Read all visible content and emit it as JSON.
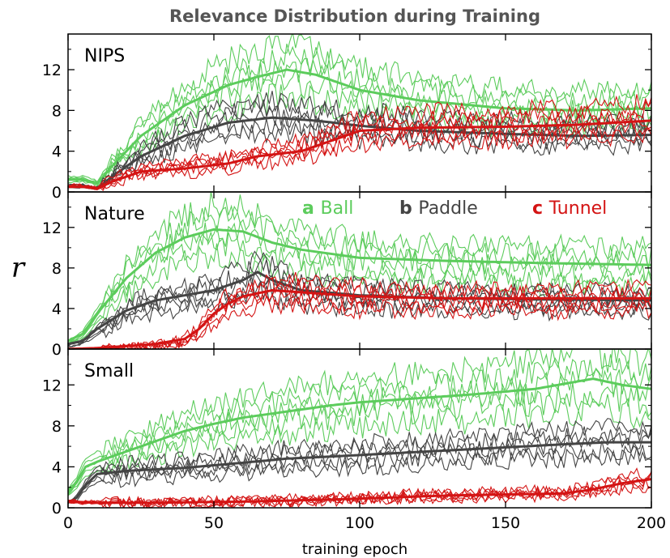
{
  "colors": {
    "ball": "#5ccc5c",
    "paddle": "#444444",
    "tunnel": "#d41414"
  },
  "chart_data": {
    "type": "line",
    "title": "Relevance Distribution during Training",
    "xlabel": "training epoch",
    "ylabel": "r",
    "xlim": [
      0,
      200
    ],
    "ylim": [
      0,
      15.5
    ],
    "xticks": [
      0,
      50,
      100,
      150,
      200
    ],
    "yticks": [
      0,
      4,
      8,
      12
    ],
    "legend": [
      {
        "letter": "a",
        "name": "Ball",
        "color": "#5ccc5c"
      },
      {
        "letter": "b",
        "name": "Paddle",
        "color": "#444444"
      },
      {
        "letter": "c",
        "name": "Tunnel",
        "color": "#d41414"
      }
    ],
    "legend_location": "top-right of Nature panel",
    "panels": [
      {
        "name": "NIPS",
        "series": [
          {
            "name": "Ball",
            "x": [
              0,
              5,
              10,
              15,
              25,
              40,
              55,
              65,
              75,
              85,
              100,
              120,
              150,
              175,
              200
            ],
            "y": [
              1.2,
              1.2,
              0.8,
              2.5,
              5.5,
              8.5,
              10.5,
              11.3,
              12.0,
              11.5,
              10.0,
              9.0,
              8.2,
              8.0,
              8.2
            ]
          },
          {
            "name": "Paddle",
            "x": [
              0,
              5,
              10,
              15,
              25,
              40,
              55,
              70,
              85,
              100,
              120,
              150,
              175,
              200
            ],
            "y": [
              0.5,
              0.5,
              0.3,
              1.5,
              3.5,
              5.5,
              6.8,
              7.3,
              7.0,
              6.5,
              6.0,
              5.7,
              5.5,
              5.6
            ]
          },
          {
            "name": "Tunnel",
            "x": [
              0,
              5,
              10,
              15,
              25,
              40,
              55,
              65,
              80,
              90,
              100,
              120,
              150,
              175,
              200
            ],
            "y": [
              0.5,
              0.5,
              0.3,
              1.0,
              2.0,
              2.3,
              2.8,
              3.5,
              4.0,
              5.0,
              6.0,
              6.3,
              6.4,
              6.6,
              7.0
            ]
          }
        ]
      },
      {
        "name": "Nature",
        "series": [
          {
            "name": "Ball",
            "x": [
              0,
              5,
              10,
              20,
              30,
              40,
              50,
              60,
              70,
              80,
              100,
              130,
              160,
              200
            ],
            "y": [
              0.8,
              1.5,
              3.5,
              7.0,
              9.5,
              11.0,
              11.8,
              11.6,
              10.5,
              9.8,
              9.0,
              8.7,
              8.5,
              8.3
            ]
          },
          {
            "name": "Paddle",
            "x": [
              0,
              5,
              10,
              20,
              30,
              40,
              50,
              60,
              65,
              70,
              80,
              100,
              130,
              160,
              200
            ],
            "y": [
              0.5,
              0.8,
              2.0,
              3.8,
              4.8,
              5.3,
              5.8,
              6.8,
              7.6,
              6.8,
              5.8,
              5.3,
              5.0,
              4.9,
              4.8
            ]
          },
          {
            "name": "Tunnel",
            "x": [
              0,
              10,
              20,
              30,
              40,
              45,
              50,
              55,
              60,
              70,
              80,
              100,
              130,
              160,
              200
            ],
            "y": [
              0.0,
              0.1,
              0.3,
              0.5,
              1.0,
              2.0,
              3.5,
              4.5,
              5.2,
              5.8,
              5.6,
              5.2,
              5.0,
              5.0,
              5.0
            ]
          }
        ]
      },
      {
        "name": "Small",
        "series": [
          {
            "name": "Ball",
            "x": [
              0,
              3,
              6,
              10,
              20,
              30,
              40,
              50,
              60,
              70,
              80,
              90,
              100,
              120,
              140,
              160,
              170,
              180,
              190,
              200
            ],
            "y": [
              1.5,
              2.5,
              4.0,
              4.5,
              5.5,
              6.5,
              7.5,
              8.2,
              8.8,
              9.2,
              9.6,
              10.0,
              10.3,
              10.7,
              11.1,
              11.6,
              12.1,
              12.6,
              12.0,
              11.6
            ]
          },
          {
            "name": "Paddle",
            "x": [
              0,
              3,
              6,
              10,
              20,
              40,
              60,
              75,
              90,
              110,
              130,
              150,
              170,
              185,
              200
            ],
            "y": [
              0.5,
              1.0,
              2.2,
              3.3,
              3.6,
              3.9,
              4.4,
              4.8,
              5.0,
              5.3,
              5.6,
              5.9,
              6.2,
              6.4,
              6.4
            ]
          },
          {
            "name": "Tunnel",
            "x": [
              0,
              10,
              30,
              60,
              90,
              110,
              130,
              150,
              170,
              180,
              190,
              200
            ],
            "y": [
              0.6,
              0.5,
              0.5,
              0.6,
              0.8,
              1.0,
              1.2,
              1.3,
              1.4,
              1.8,
              2.4,
              2.8
            ]
          }
        ]
      }
    ]
  }
}
